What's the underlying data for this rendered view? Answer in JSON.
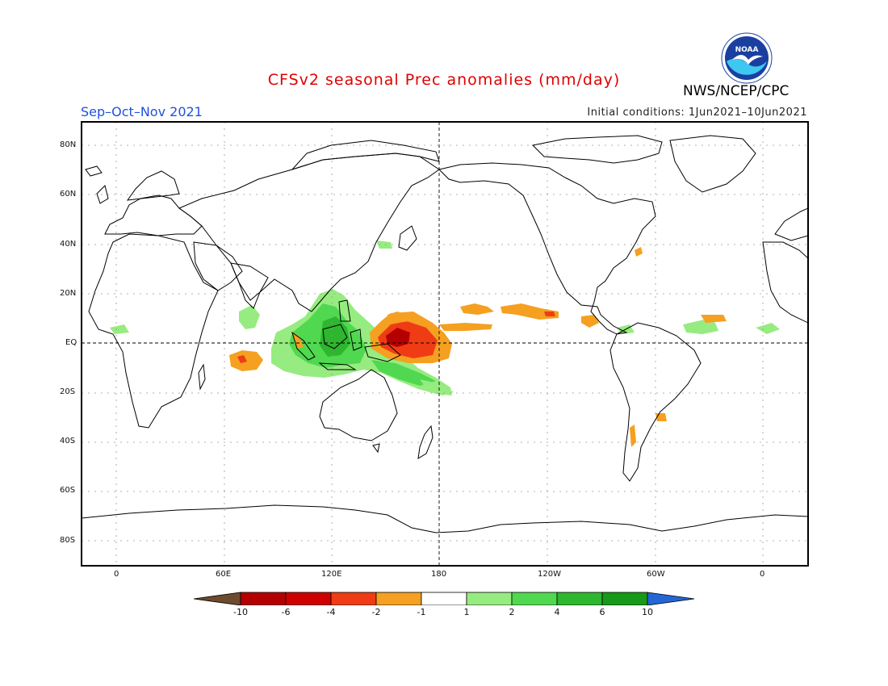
{
  "title": "CFSv2 seasonal Prec anomalies (mm/day)",
  "season": "Sep–Oct–Nov 2021",
  "initial_conditions": "Initial conditions: 1Jun2021–10Jun2021",
  "agency": "NWS/NCEP/CPC",
  "logo": {
    "text": "NOAA",
    "colors": {
      "outer": "#ffffff",
      "inner": "#1a3fa0",
      "sea": "#3ec7f0",
      "bird": "#ffffff"
    }
  },
  "map": {
    "projection": "cylindrical-equidistant",
    "lon_range": [
      -20,
      380
    ],
    "lat_range": [
      -90,
      90
    ],
    "lat_ticks": [
      "80N",
      "60N",
      "40N",
      "20N",
      "EQ",
      "20S",
      "40S",
      "60S",
      "80S"
    ],
    "lon_ticks": [
      "0",
      "60E",
      "120E",
      "180",
      "120W",
      "60W",
      "0"
    ]
  },
  "colorbar": {
    "labels": [
      "-10",
      "-6",
      "-4",
      "-2",
      "-1",
      "1",
      "2",
      "4",
      "6",
      "10"
    ],
    "colors": [
      "#6e4a2e",
      "#b40000",
      "#cf0000",
      "#f03c14",
      "#f5a020",
      "#ffffff",
      "#96ec80",
      "#50d850",
      "#2eb62e",
      "#179a17",
      "#2466d6"
    ]
  }
}
